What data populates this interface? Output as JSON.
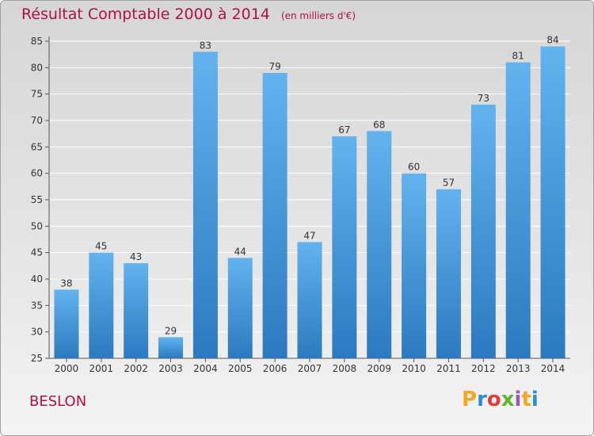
{
  "title": "Résultat Comptable 2000 à 2014",
  "unit_note": "(en milliers d'€)",
  "town_name": "BESLON",
  "logo_text": "Proxiti",
  "logo_colors": [
    "#f5a623",
    "#2a8fd8",
    "#e33a3a",
    "#5cb82f",
    "#9b59b6",
    "#f5a623",
    "#2a8fd8"
  ],
  "colors": {
    "bar_top": "#62b3ee",
    "bar_bottom": "#2b7ac0",
    "title": "#b01048"
  },
  "chart_data": {
    "type": "bar",
    "categories": [
      "2000",
      "2001",
      "2002",
      "2003",
      "2004",
      "2005",
      "2006",
      "2007",
      "2008",
      "2009",
      "2010",
      "2011",
      "2012",
      "2013",
      "2014"
    ],
    "values": [
      38,
      45,
      43,
      29,
      83,
      44,
      79,
      47,
      67,
      68,
      60,
      57,
      73,
      81,
      84
    ],
    "ylim": [
      25,
      85
    ],
    "yticks": [
      25,
      30,
      35,
      40,
      45,
      50,
      55,
      60,
      65,
      70,
      75,
      80,
      85
    ],
    "grid": true,
    "title": "Résultat Comptable 2000 à 2014",
    "xlabel": "",
    "ylabel": ""
  }
}
